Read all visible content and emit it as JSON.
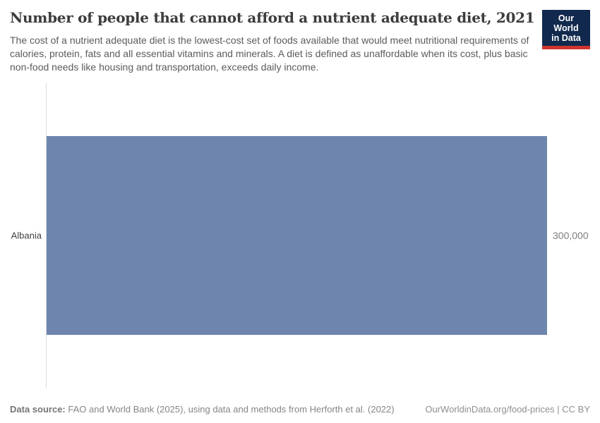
{
  "header": {
    "title": "Number of people that cannot afford a nutrient adequate diet, 2021",
    "subtitle": "The cost of a nutrient adequate diet is the lowest-cost set of foods available that would meet nutritional requirements of calories, protein, fats and all essential vitamins and minerals. A diet is defined as unaffordable when its cost, plus basic non-food needs like housing and transportation, exceeds daily income.",
    "logo": {
      "line1": "Our World",
      "line2": "in Data",
      "background_color": "#12294e",
      "accent_color": "#d0342c"
    }
  },
  "chart_data": {
    "type": "bar",
    "orientation": "horizontal",
    "title": "Number of people that cannot afford a nutrient adequate diet, 2021",
    "categories": [
      "Albania"
    ],
    "values": [
      300000
    ],
    "value_labels": [
      "300,000"
    ],
    "xlim": [
      0,
      300000
    ],
    "grid": false,
    "legend": false,
    "bar_color": "#6e85ae",
    "axis_color": "#dcdcdc"
  },
  "footer": {
    "source_label": "Data source:",
    "source_text": " FAO and World Bank (2025), using data and methods from Herforth et al. (2022)",
    "right_text": "OurWorldinData.org/food-prices | CC BY"
  }
}
